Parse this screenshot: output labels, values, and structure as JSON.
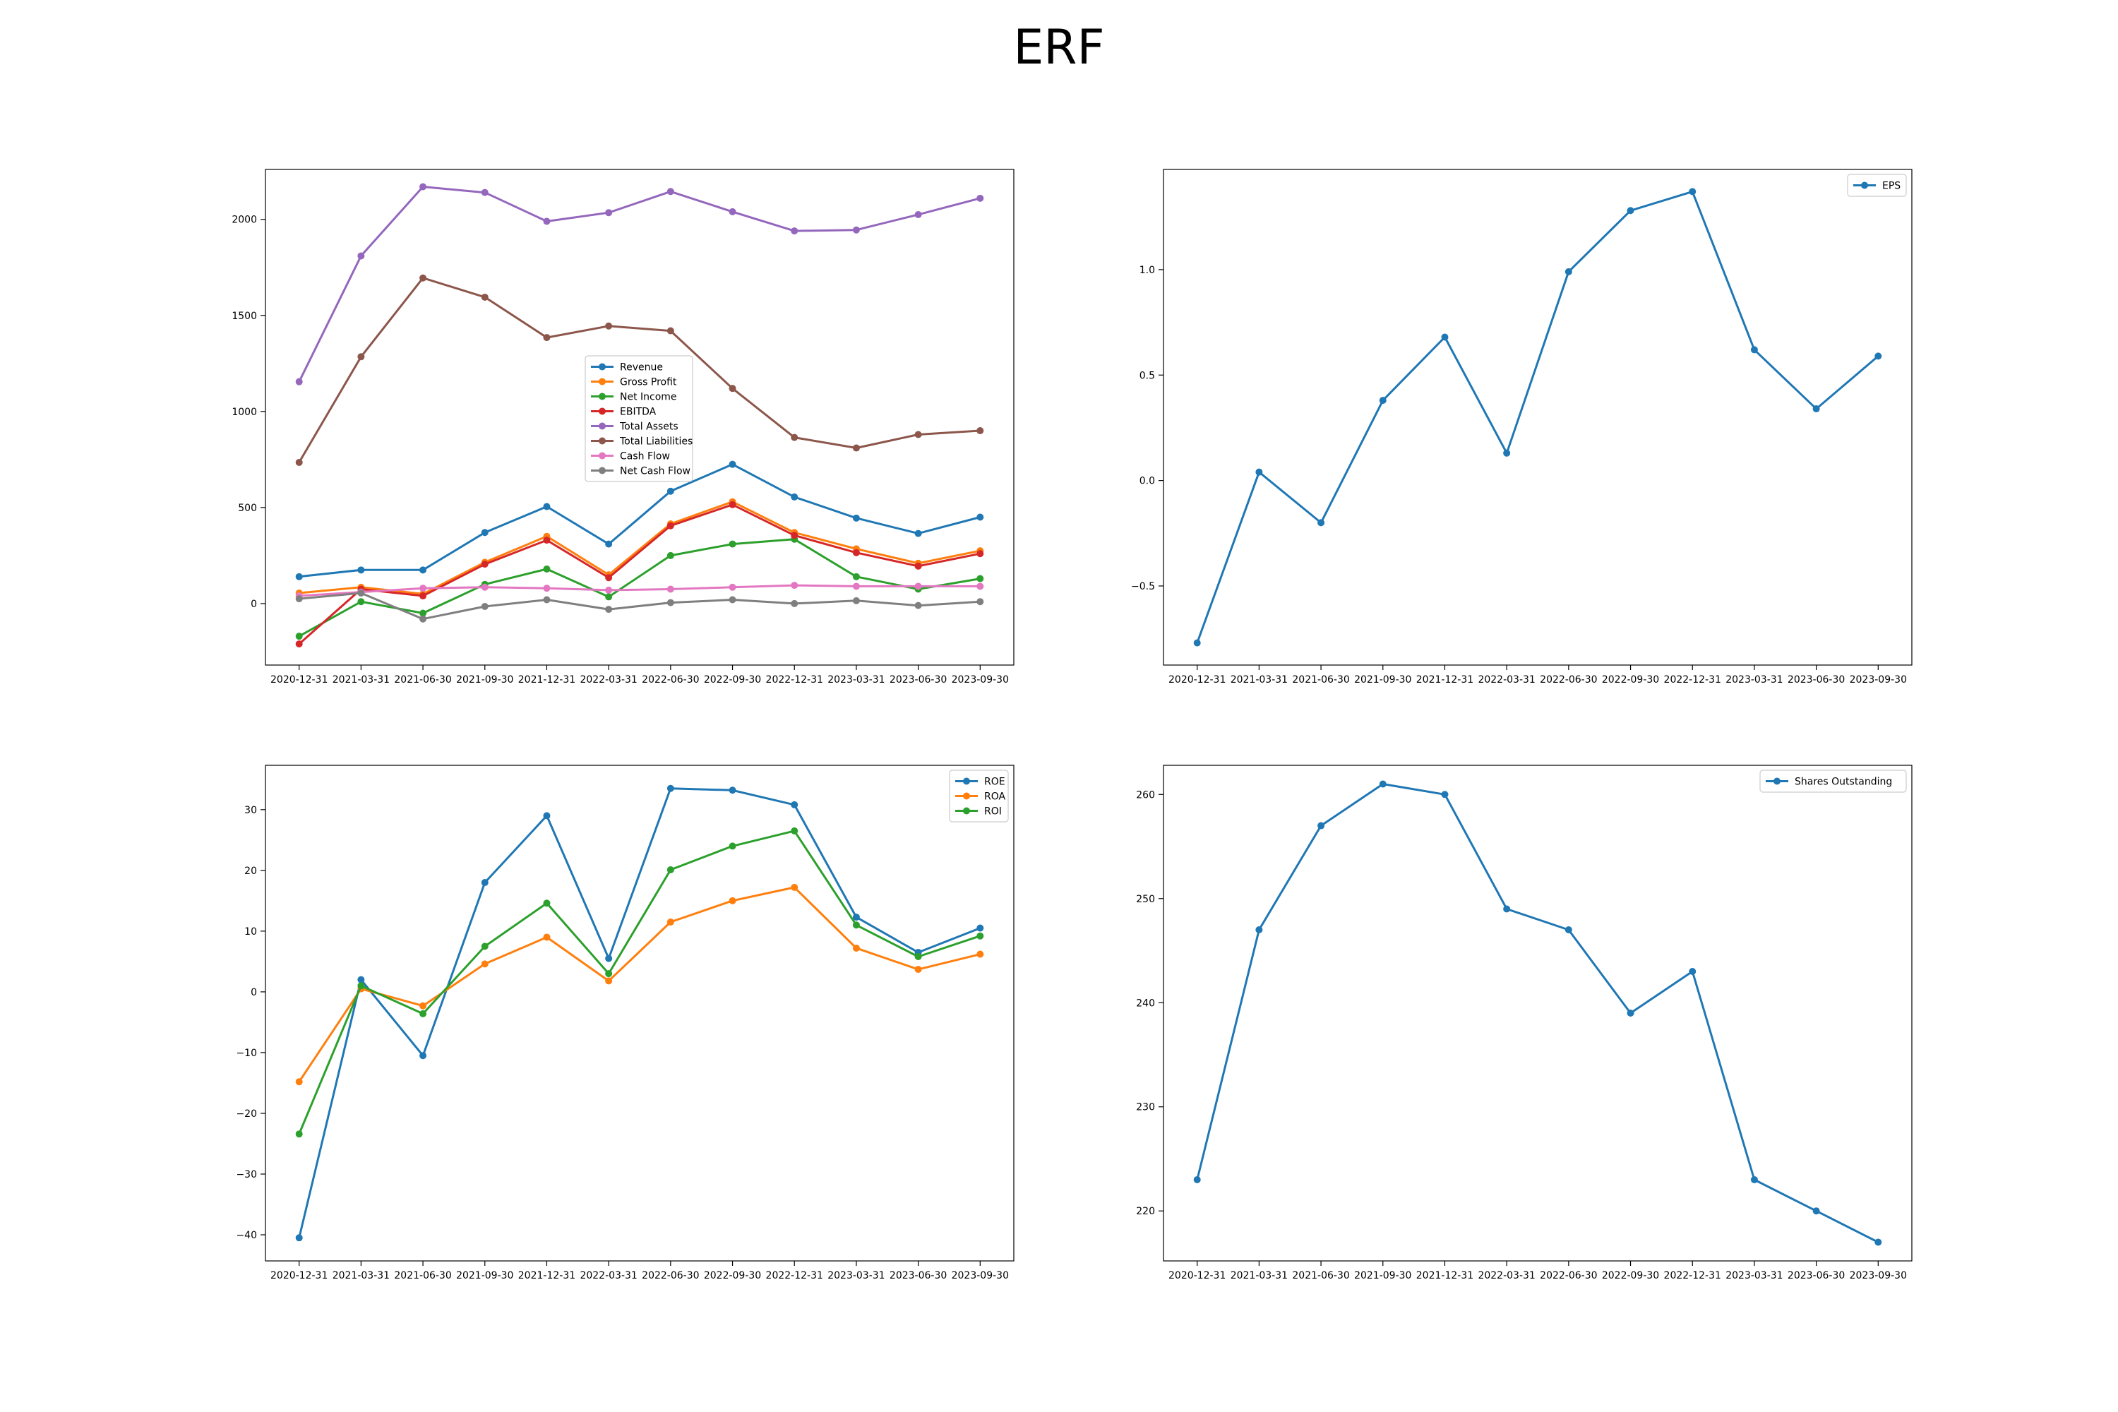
{
  "title": "ERF",
  "colors": {
    "blue": "#1f77b4",
    "orange": "#ff7f0e",
    "green": "#2ca02c",
    "red": "#d62728",
    "purple": "#9467bd",
    "brown": "#8c564b",
    "pink": "#e377c2",
    "gray": "#7f7f7f"
  },
  "chart_data": [
    {
      "type": "line",
      "x": [
        "2020-12-31",
        "2021-03-31",
        "2021-06-30",
        "2021-09-30",
        "2021-12-31",
        "2022-03-31",
        "2022-06-30",
        "2022-09-30",
        "2022-12-31",
        "2023-03-31",
        "2023-06-30",
        "2023-09-30"
      ],
      "ylim": [
        -320,
        2260
      ],
      "yticks": [
        0,
        500,
        1000,
        1500,
        2000
      ],
      "legend": "center",
      "grid": false,
      "series": [
        {
          "name": "Revenue",
          "color": "#1f77b4",
          "values": [
            140,
            175,
            175,
            370,
            505,
            310,
            585,
            725,
            555,
            445,
            365,
            450
          ]
        },
        {
          "name": "Gross Profit",
          "color": "#ff7f0e",
          "values": [
            55,
            85,
            50,
            215,
            350,
            150,
            415,
            530,
            370,
            285,
            210,
            275
          ]
        },
        {
          "name": "Net Income",
          "color": "#2ca02c",
          "values": [
            -170,
            10,
            -50,
            100,
            180,
            35,
            250,
            310,
            335,
            140,
            75,
            130
          ]
        },
        {
          "name": "EBITDA",
          "color": "#d62728",
          "values": [
            -210,
            75,
            40,
            205,
            330,
            135,
            405,
            515,
            355,
            265,
            195,
            260
          ]
        },
        {
          "name": "Total Assets",
          "color": "#9467bd",
          "values": [
            1155,
            1810,
            2170,
            2140,
            1990,
            2035,
            2145,
            2040,
            1940,
            1945,
            2025,
            2110
          ]
        },
        {
          "name": "Total Liabilities",
          "color": "#8c564b",
          "values": [
            735,
            1285,
            1695,
            1595,
            1385,
            1445,
            1420,
            1120,
            865,
            810,
            880,
            900
          ]
        },
        {
          "name": "Cash Flow",
          "color": "#e377c2",
          "values": [
            40,
            60,
            80,
            85,
            80,
            70,
            75,
            85,
            95,
            90,
            90,
            90
          ]
        },
        {
          "name": "Net Cash Flow",
          "color": "#7f7f7f",
          "values": [
            25,
            55,
            -80,
            -15,
            20,
            -30,
            5,
            20,
            0,
            15,
            -10,
            10
          ]
        }
      ]
    },
    {
      "type": "line",
      "x": [
        "2020-12-31",
        "2021-03-31",
        "2021-06-30",
        "2021-09-30",
        "2021-12-31",
        "2022-03-31",
        "2022-06-30",
        "2022-09-30",
        "2022-12-31",
        "2023-03-31",
        "2023-06-30",
        "2023-09-30"
      ],
      "ylim": [
        -0.875,
        1.475
      ],
      "yticks": [
        -0.5,
        0.0,
        0.5,
        1.0
      ],
      "yticklabels": [
        "−0.5",
        "0.0",
        "0.5",
        "1.0"
      ],
      "legend": "top-right",
      "grid": false,
      "series": [
        {
          "name": "EPS",
          "color": "#1f77b4",
          "values": [
            -0.77,
            0.04,
            -0.2,
            0.38,
            0.68,
            0.13,
            0.99,
            1.28,
            1.37,
            0.62,
            0.34,
            0.59
          ]
        }
      ]
    },
    {
      "type": "line",
      "x": [
        "2020-12-31",
        "2021-03-31",
        "2021-06-30",
        "2021-09-30",
        "2021-12-31",
        "2022-03-31",
        "2022-06-30",
        "2022-09-30",
        "2022-12-31",
        "2023-03-31",
        "2023-06-30",
        "2023-09-30"
      ],
      "ylim": [
        -44.3,
        37.3
      ],
      "yticks": [
        -40,
        -30,
        -20,
        -10,
        0,
        10,
        20,
        30
      ],
      "yticklabels": [
        "−40",
        "−30",
        "−20",
        "−10",
        "0",
        "10",
        "20",
        "30"
      ],
      "legend": "top-right",
      "grid": false,
      "series": [
        {
          "name": "ROE",
          "color": "#1f77b4",
          "values": [
            -40.5,
            2,
            -10.5,
            18,
            29,
            5.5,
            33.5,
            33.2,
            30.8,
            12.3,
            6.5,
            10.5
          ]
        },
        {
          "name": "ROA",
          "color": "#ff7f0e",
          "values": [
            -14.8,
            0.5,
            -2.3,
            4.6,
            9,
            1.8,
            11.5,
            15,
            17.2,
            7.2,
            3.7,
            6.2
          ]
        },
        {
          "name": "ROI",
          "color": "#2ca02c",
          "values": [
            -23.4,
            1,
            -3.6,
            7.5,
            14.6,
            3,
            20.1,
            24,
            26.5,
            11,
            5.8,
            9.2
          ]
        }
      ]
    },
    {
      "type": "line",
      "x": [
        "2020-12-31",
        "2021-03-31",
        "2021-06-30",
        "2021-09-30",
        "2021-12-31",
        "2022-03-31",
        "2022-06-30",
        "2022-09-30",
        "2022-12-31",
        "2023-03-31",
        "2023-06-30",
        "2023-09-30"
      ],
      "ylim": [
        215.2,
        262.8
      ],
      "yticks": [
        220,
        230,
        240,
        250,
        260
      ],
      "legend": "top-right",
      "grid": false,
      "series": [
        {
          "name": "Shares Outstanding",
          "color": "#1f77b4",
          "values": [
            223,
            247,
            257,
            261,
            260,
            249,
            247,
            239,
            243,
            223,
            220,
            217
          ]
        }
      ]
    }
  ]
}
